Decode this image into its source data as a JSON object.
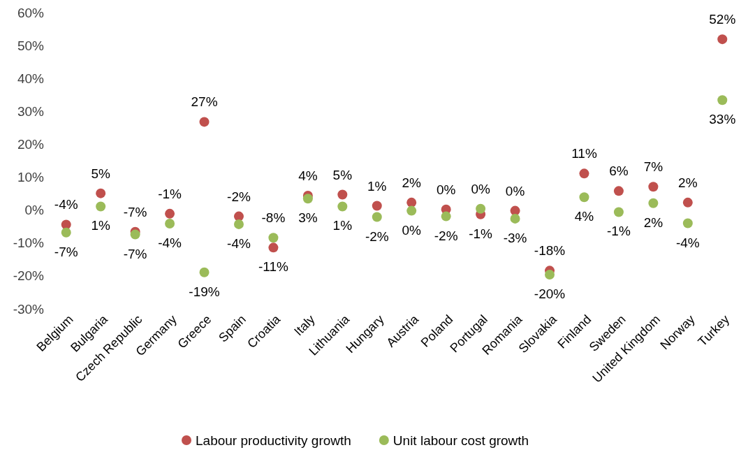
{
  "chart_data": {
    "type": "scatter",
    "categories": [
      "Belgium",
      "Bulgaria",
      "Czech Republic",
      "Germany",
      "Greece",
      "Spain",
      "Croatia",
      "Italy",
      "Lithuania",
      "Hungary",
      "Austria",
      "Poland",
      "Portugal",
      "Romania",
      "Slovakia",
      "Finland",
      "Sweden",
      "United Kingdom",
      "Norway",
      "Turkey"
    ],
    "series": [
      {
        "name": "Labour productivity growth",
        "color": "#c0504d",
        "values": [
          -4.4,
          5.1,
          -6.6,
          -1.1,
          26.8,
          -1.9,
          -11.4,
          4.4,
          4.7,
          1.3,
          2.3,
          0.2,
          -1.3,
          -0.2,
          -18.4,
          11.1,
          5.8,
          7.1,
          2.3,
          51.9
        ],
        "value_labels": [
          "-4%",
          "5%",
          "-7%",
          "-1%",
          "27%",
          "-2%",
          "-11%",
          "4%",
          "5%",
          "1%",
          "2%",
          "0%",
          "-1%",
          "0%",
          "-18%",
          "11%",
          "6%",
          "7%",
          "2%",
          "52%"
        ]
      },
      {
        "name": "Unit labour cost growth",
        "color": "#9bbb59",
        "values": [
          -6.8,
          1.1,
          -7.4,
          -4.1,
          -18.9,
          -4.3,
          -8.4,
          3.5,
          1.1,
          -2.1,
          -0.2,
          -1.9,
          0.4,
          -2.6,
          -19.6,
          3.9,
          -0.6,
          2.1,
          -4.0,
          33.4
        ],
        "value_labels": [
          "-7%",
          "1%",
          "-7%",
          "-4%",
          "-19%",
          "-4%",
          "-8%",
          "3%",
          "1%",
          "-2%",
          "0%",
          "-2%",
          "0%",
          "-3%",
          "-20%",
          "4%",
          "-1%",
          "2%",
          "-4%",
          "33%"
        ]
      }
    ],
    "ylim": [
      -30,
      60
    ],
    "yticks": [
      {
        "value": -30,
        "label": "-30%"
      },
      {
        "value": -20,
        "label": "-20%"
      },
      {
        "value": -10,
        "label": "-10%"
      },
      {
        "value": 0,
        "label": "0%"
      },
      {
        "value": 10,
        "label": "10%"
      },
      {
        "value": 20,
        "label": "20%"
      },
      {
        "value": 30,
        "label": "30%"
      },
      {
        "value": 40,
        "label": "40%"
      },
      {
        "value": 50,
        "label": "50%"
      },
      {
        "value": 60,
        "label": "60%"
      }
    ],
    "grid": false,
    "legend": "bottom",
    "marker": "circle"
  }
}
